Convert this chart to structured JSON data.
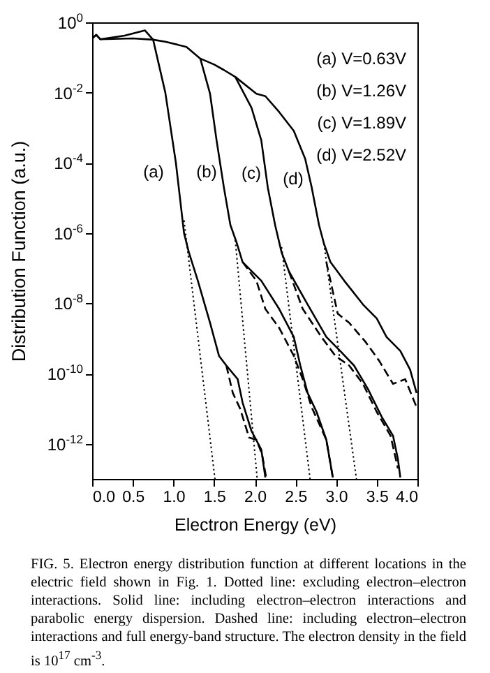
{
  "chart_data": {
    "type": "line",
    "xlabel": "Electron Energy (eV)",
    "ylabel": "Distribution Function (a.u.)",
    "log": "y",
    "xlim": [
      0,
      4
    ],
    "xticks": [
      {
        "value": 0,
        "label": "0.0"
      },
      {
        "value": 0.5,
        "label": "0.5"
      },
      {
        "value": 1,
        "label": "1.0"
      },
      {
        "value": 1.5,
        "label": "1.5"
      },
      {
        "value": 2,
        "label": "2.0"
      },
      {
        "value": 2.5,
        "label": "2.5"
      },
      {
        "value": 3,
        "label": "3.0"
      },
      {
        "value": 3.5,
        "label": "3.5"
      },
      {
        "value": 4,
        "label": "4.0"
      }
    ],
    "ylim": [
      1e-13,
      1
    ],
    "yticks": [
      {
        "value": 1,
        "label": "10$^{0}$"
      },
      {
        "value": 0.01,
        "label": "10$^{-2}$"
      },
      {
        "value": 0.0001,
        "label": "10$^{-4}$"
      },
      {
        "value": 1e-06,
        "label": "10$^{-6}$"
      },
      {
        "value": 1e-08,
        "label": "10$^{-8}$"
      },
      {
        "value": 1e-10,
        "label": "10$^{-10}$"
      },
      {
        "value": 1e-12,
        "label": "10$^{-12}$"
      }
    ],
    "series": [
      {
        "color": "#000000",
        "line_style": "solid",
        "x": [
          0,
          0.05,
          0.1,
          0.4,
          0.65,
          0.75,
          0.9,
          1.03,
          1.13,
          1.19,
          1.3,
          1.45,
          1.56,
          1.65,
          1.79,
          1.85,
          1.96,
          2.08,
          2.13
        ],
        "values": [
          0.35,
          0.44,
          0.33,
          0.42,
          0.59,
          0.32,
          0.01,
          0.0001,
          1e-06,
          2.8e-07,
          4.4e-08,
          2.8e-09,
          3.2e-10,
          1.7e-10,
          6.9e-11,
          1.5e-11,
          2.3e-12,
          6.9e-13,
          1.1e-13
        ]
      },
      {
        "color": "#000000",
        "line_style": "dashed",
        "x": [
          1.65,
          1.73,
          1.82,
          1.93,
          2.02,
          2.09,
          2.14
        ],
        "values": [
          1.7e-10,
          2.8e-11,
          1e-11,
          1.5e-12,
          1.3e-12,
          5e-13,
          1.1e-13
        ]
      },
      {
        "color": "#000000",
        "line_style": "dotted",
        "x": [
          1.13,
          1.51
        ],
        "values": [
          2.3e-06,
          1e-13
        ]
      },
      {
        "color": "#000000",
        "line_style": "solid",
        "x": [
          0,
          0.05,
          0.1,
          0.5,
          0.75,
          0.9,
          1.16,
          1.33,
          1.45,
          1.53,
          1.62,
          1.7,
          1.78,
          1.85,
          2.08,
          2.3,
          2.48,
          2.56,
          2.65,
          2.76,
          2.88,
          2.93,
          2.96
        ],
        "values": [
          0.35,
          0.44,
          0.33,
          0.35,
          0.32,
          0.28,
          0.2,
          0.093,
          0.0093,
          0.00044,
          2e-05,
          1.7e-06,
          5.1e-07,
          1.5e-07,
          4.4e-08,
          6.9e-09,
          1.1e-09,
          1.7e-10,
          2.8e-11,
          8.1e-12,
          1.3e-12,
          2.8e-13,
          1.1e-13
        ]
      },
      {
        "color": "#000000",
        "line_style": "dashed",
        "x": [
          1.85,
          2.02,
          2.13,
          2.3,
          2.48,
          2.59,
          2.7,
          2.88,
          2.96
        ],
        "values": [
          1.5e-07,
          4.4e-08,
          6.9e-09,
          2e-09,
          3.2e-10,
          6.9e-11,
          1.1e-11,
          1.3e-12,
          1.1e-13
        ]
      },
      {
        "color": "#000000",
        "line_style": "dotted",
        "x": [
          1.76,
          2.03
        ],
        "values": [
          6.3e-07,
          1e-13
        ]
      },
      {
        "color": "#000000",
        "line_style": "solid",
        "x": [
          1.33,
          1.5,
          1.62,
          1.76,
          1.96,
          2.08,
          2.16,
          2.25,
          2.33,
          2.42,
          2.65,
          2.88,
          3.05,
          3.22,
          3.39,
          3.56,
          3.7,
          3.76,
          3.79
        ],
        "values": [
          0.093,
          0.063,
          0.044,
          0.028,
          0.0037,
          0.00044,
          2e-05,
          1.7e-06,
          2.8e-07,
          8.1e-08,
          9.3e-09,
          1.1e-09,
          4.4e-10,
          1.7e-10,
          3.7e-11,
          5.9e-12,
          1.7e-12,
          3.7e-13,
          1.1e-13
        ]
      },
      {
        "color": "#000000",
        "line_style": "dashed",
        "x": [
          2.42,
          2.59,
          2.82,
          2.99,
          3.16,
          3.33,
          3.5,
          3.67,
          3.76
        ],
        "values": [
          8.1e-08,
          6.9e-09,
          1.1e-09,
          3.2e-10,
          1.7e-10,
          5.1e-11,
          8.1e-12,
          1.7e-12,
          2e-13
        ]
      },
      {
        "color": "#000000",
        "line_style": "dotted",
        "x": [
          2.33,
          2.68
        ],
        "values": [
          4e-07,
          1e-13
        ]
      },
      {
        "color": "#000000",
        "line_style": "solid",
        "x": [
          1.76,
          2.02,
          2.13,
          2.3,
          2.48,
          2.62,
          2.7,
          2.79,
          2.85,
          2.93,
          3.1,
          3.33,
          3.5,
          3.62,
          3.79,
          3.91,
          3.99
        ],
        "values": [
          0.028,
          0.0093,
          0.0079,
          0.0028,
          0.00081,
          0.00013,
          2e-05,
          1.7e-06,
          5.1e-07,
          1.5e-07,
          4.4e-08,
          9.3e-09,
          3.7e-09,
          1.1e-09,
          4.4e-10,
          1.3e-10,
          2.8e-11
        ]
      },
      {
        "color": "#000000",
        "line_style": "dashed",
        "x": [
          2.88,
          3.02,
          3.16,
          3.36,
          3.53,
          3.7,
          3.85,
          3.99
        ],
        "values": [
          1.5e-07,
          5.1e-09,
          2.8e-09,
          8.1e-10,
          2.3e-10,
          5.1e-11,
          6.9e-11,
          1.1e-11
        ]
      },
      {
        "color": "#000000",
        "line_style": "dotted",
        "x": [
          2.85,
          3.25
        ],
        "values": [
          5e-07,
          1e-13
        ]
      }
    ],
    "annotations": [
      "(a)",
      "(b)",
      "(c)",
      "(d)",
      "(a)  V=0.63V",
      "(b)  V=1.26V",
      "(c)  V=1.89V",
      "(d)  V=2.52V",
      "FIG. 5. Electron energy distribution function at different locations in the electric field shown in Fig. 1. Dotted line: excluding electron–electron interactions. Solid line: including electron–electron interactions and parabolic energy dispersion. Dashed line: including electron–electron interactions and full energy-band structure. The electron density in the field is 10$^{17}$ cm$^{-3}$."
    ]
  }
}
